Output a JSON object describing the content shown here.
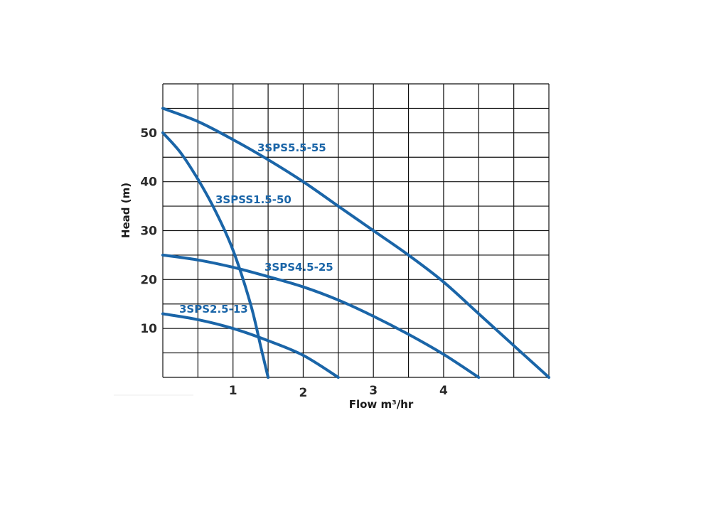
{
  "chart_data": {
    "type": "line",
    "xlabel": "Flow m³/hr",
    "ylabel": "Head (m)",
    "xlim": [
      0,
      5.5
    ],
    "ylim": [
      0,
      60
    ],
    "x_ticks": [
      1,
      2,
      3,
      4
    ],
    "y_ticks": [
      10,
      20,
      30,
      40,
      50
    ],
    "grid": true,
    "legend": "inline",
    "series_color": "#1a65a8",
    "grid_color": "#111111",
    "series": [
      {
        "name": "3SPS5.5-55",
        "x": [
          0,
          0.5,
          1,
          1.5,
          2,
          2.5,
          3,
          3.5,
          4,
          4.5,
          5,
          5.5
        ],
        "y": [
          55,
          52.3,
          48.6,
          44.5,
          40,
          35,
          30,
          25,
          19.5,
          13,
          6.5,
          0
        ]
      },
      {
        "name": "3SPSS1.5-50",
        "x": [
          0,
          0.25,
          0.5,
          0.75,
          1,
          1.25,
          1.4,
          1.5
        ],
        "y": [
          50,
          46,
          40.5,
          34,
          26,
          15,
          6,
          0
        ]
      },
      {
        "name": "3SPS4.5-25",
        "x": [
          0,
          0.5,
          1,
          1.5,
          2,
          2.5,
          3,
          3.5,
          4,
          4.5
        ],
        "y": [
          25,
          24,
          22.5,
          20.6,
          18.5,
          15.8,
          12.5,
          8.8,
          4.7,
          0
        ]
      },
      {
        "name": "3SPS2.5-13",
        "x": [
          0,
          0.5,
          1,
          1.5,
          2,
          2.5
        ],
        "y": [
          13,
          11.8,
          10,
          7.5,
          4.5,
          0
        ]
      }
    ]
  }
}
